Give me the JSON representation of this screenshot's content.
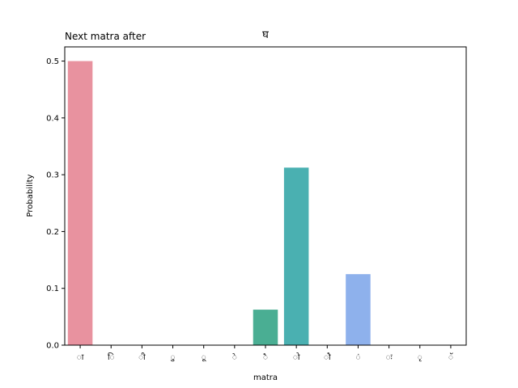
{
  "chart_data": {
    "type": "bar",
    "title_left": "Next matra after",
    "title_center": "घ",
    "xlabel": "matra",
    "ylabel": "Probability",
    "categories": [
      "ा",
      "ि",
      "ी",
      "ु",
      "ू",
      "े",
      "ै",
      "ो",
      "ौ",
      "ं",
      "ः",
      "ृ",
      "ॅ"
    ],
    "values": [
      0.5,
      0.0,
      0.0,
      0.0,
      0.0,
      0.0,
      0.0625,
      0.3125,
      0.0,
      0.125,
      0.0,
      0.0,
      0.0
    ],
    "colors": [
      "#e8929f",
      "#e69a72",
      "#d3a56b",
      "#b7ae5f",
      "#9bb45d",
      "#6fbb6c",
      "#4aae93",
      "#4ab0b1",
      "#4fb0cf",
      "#8eb1ec",
      "#b9a8f0",
      "#df98ea",
      "#e896c6"
    ],
    "yticks": [
      "0.0",
      "0.1",
      "0.2",
      "0.3",
      "0.4",
      "0.5"
    ],
    "ylim": [
      0,
      0.525
    ],
    "grid": false,
    "legend": "none"
  }
}
